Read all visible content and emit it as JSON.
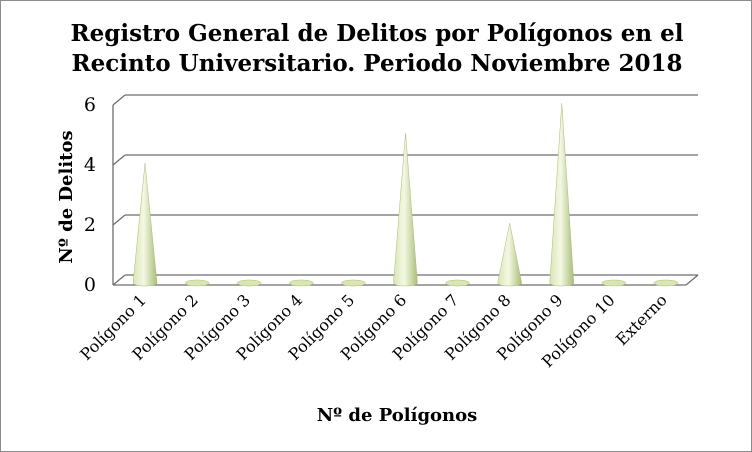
{
  "chart_data": {
    "type": "bar",
    "style": "3d-cone",
    "title_lines": [
      "Registro General de Delitos por Polígonos en el",
      "Recinto Universitario. Periodo Noviembre 2018"
    ],
    "xlabel": "Nº de Polígonos",
    "ylabel": "Nº de Delitos",
    "categories": [
      "Polígono 1",
      "Polígono 2",
      "Polígono 3",
      "Polígono 4",
      "Polígono 5",
      "Polígono 6",
      "Polígono 7",
      "Polígono 8",
      "Polígono 9",
      "Polígono 10",
      "Externo"
    ],
    "values": [
      4,
      0,
      0,
      0,
      0,
      5,
      0,
      2,
      6,
      0,
      0
    ],
    "ylim": [
      0,
      6
    ],
    "yticks": [
      0,
      2,
      4,
      6
    ],
    "grid": true,
    "legend": "none",
    "colors": {
      "cone_light": "#f4f8e4",
      "cone_mid": "#d9e6b4",
      "cone_dark": "#a9bd78",
      "grid": "#6e6e6e",
      "frame": "#8c8c8c"
    }
  }
}
